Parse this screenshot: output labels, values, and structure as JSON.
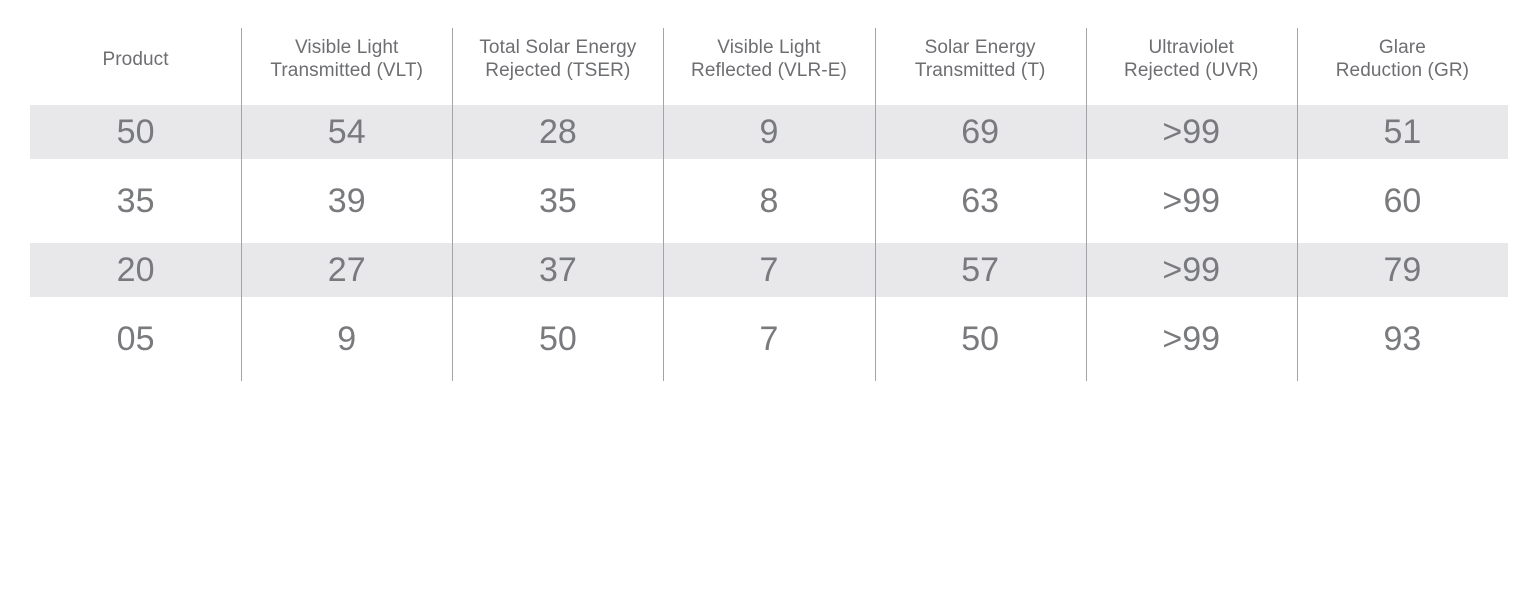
{
  "table": {
    "description": "Window film product performance specifications table",
    "columns": [
      {
        "id": "product",
        "label": "Product",
        "lines": [
          "Product"
        ]
      },
      {
        "id": "vlt",
        "label": "Visible Light Transmitted (VLT)",
        "lines": [
          "Visible Light",
          "Transmitted (VLT)"
        ]
      },
      {
        "id": "tser",
        "label": "Total Solar Energy Rejected (TSER)",
        "lines": [
          "Total Solar Energy",
          "Rejected (TSER)"
        ]
      },
      {
        "id": "vlre",
        "label": "Visible Light Reflected (VLR-E)",
        "lines": [
          "Visible Light",
          "Reflected (VLR-E)"
        ]
      },
      {
        "id": "t",
        "label": "Solar Energy Transmitted (T)",
        "lines": [
          "Solar Energy",
          "Transmitted (T)"
        ]
      },
      {
        "id": "uvr",
        "label": "Ultraviolet Rejected (UVR)",
        "lines": [
          "Ultraviolet",
          "Rejected (UVR)"
        ]
      },
      {
        "id": "gr",
        "label": "Glare Reduction (GR)",
        "lines": [
          "Glare",
          "Reduction (GR)"
        ]
      }
    ],
    "rows": [
      {
        "cells": [
          "50",
          "54",
          "28",
          "9",
          "69",
          ">99",
          "51"
        ],
        "shaded": true
      },
      {
        "cells": [
          "35",
          "39",
          "35",
          "8",
          "63",
          ">99",
          "60"
        ],
        "shaded": false
      },
      {
        "cells": [
          "20",
          "27",
          "37",
          "7",
          "57",
          ">99",
          "79"
        ],
        "shaded": true
      },
      {
        "cells": [
          "05",
          "9",
          "50",
          "7",
          "50",
          ">99",
          "93"
        ],
        "shaded": false
      }
    ],
    "colors": {
      "row_stripe": "#e8e8ea",
      "column_divider": "#a2a4a7",
      "header_text": "#6d6e71",
      "value_text": "#797a7d",
      "background": "#ffffff"
    }
  }
}
